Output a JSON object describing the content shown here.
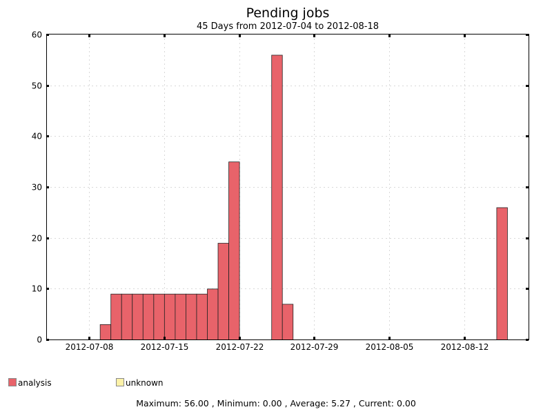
{
  "chart_data": {
    "type": "bar",
    "title": "Pending jobs",
    "subtitle": "45 Days from 2012-07-04 to 2012-08-18",
    "xlabel": "",
    "ylabel": "",
    "x_range": [
      "2012-07-04",
      "2012-08-18"
    ],
    "ylim": [
      0,
      60
    ],
    "y_ticks": [
      0,
      10,
      20,
      30,
      40,
      50,
      60
    ],
    "x_ticks": [
      "2012-07-08",
      "2012-07-15",
      "2012-07-22",
      "2012-07-29",
      "2012-08-05",
      "2012-08-12"
    ],
    "grid": true,
    "legend_position": "bottom",
    "series": [
      {
        "name": "analysis",
        "color": "#e8636a",
        "points": [
          {
            "date": "2012-07-09",
            "value": 3
          },
          {
            "date": "2012-07-10",
            "value": 9
          },
          {
            "date": "2012-07-11",
            "value": 9
          },
          {
            "date": "2012-07-12",
            "value": 9
          },
          {
            "date": "2012-07-13",
            "value": 9
          },
          {
            "date": "2012-07-14",
            "value": 9
          },
          {
            "date": "2012-07-15",
            "value": 9
          },
          {
            "date": "2012-07-16",
            "value": 9
          },
          {
            "date": "2012-07-17",
            "value": 9
          },
          {
            "date": "2012-07-18",
            "value": 9
          },
          {
            "date": "2012-07-19",
            "value": 10
          },
          {
            "date": "2012-07-20",
            "value": 19
          },
          {
            "date": "2012-07-21",
            "value": 35
          },
          {
            "date": "2012-07-25",
            "value": 56
          },
          {
            "date": "2012-07-26",
            "value": 7
          },
          {
            "date": "2012-08-15",
            "value": 26
          }
        ]
      },
      {
        "name": "unknown",
        "color": "#fdf2a8",
        "points": []
      }
    ],
    "stats": {
      "text": "Maximum: 56.00 , Minimum: 0.00 , Average: 5.27 , Current: 0.00"
    }
  }
}
